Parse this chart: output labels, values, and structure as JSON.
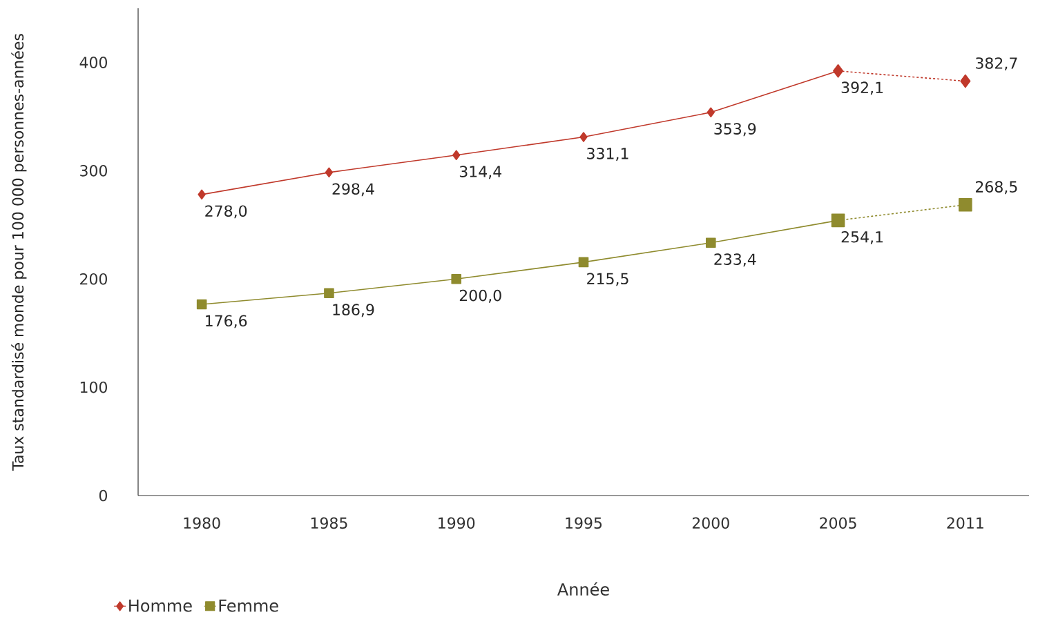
{
  "chart_data": {
    "type": "line",
    "xlabel": "Année",
    "ylabel": "Taux standardisé monde pour 100 000 personnes-années",
    "categories": [
      "1980",
      "1985",
      "1990",
      "1995",
      "2000",
      "2005",
      "2011"
    ],
    "ylim": [
      0,
      450
    ],
    "yticks": [
      0,
      100,
      200,
      300,
      400
    ],
    "legend": "bottom left",
    "grid": false,
    "series": [
      {
        "name": "Homme",
        "color": "#c0392b",
        "marker": "diamond",
        "line_style": "solid",
        "values": [
          278.0,
          298.4,
          314.4,
          331.1,
          353.9,
          392.1,
          null
        ],
        "value_labels": [
          "278,0",
          "298,4",
          "314,4",
          "331,1",
          "353,9",
          "392,1",
          null
        ]
      },
      {
        "name": "Femme",
        "color": "#8f8b2e",
        "marker": "square",
        "line_style": "solid",
        "values": [
          176.6,
          186.9,
          200.0,
          215.5,
          233.4,
          254.1,
          null
        ],
        "value_labels": [
          "176,6",
          "186,9",
          "200,0",
          "215,5",
          "233,4",
          "254,1",
          null
        ]
      },
      {
        "color": "#c0392b",
        "marker": "diamond",
        "line_style": "dashed",
        "values": [
          null,
          null,
          null,
          null,
          null,
          392.1,
          382.7
        ],
        "value_labels": [
          null,
          null,
          null,
          null,
          null,
          null,
          "382,7"
        ]
      },
      {
        "color": "#8f8b2e",
        "marker": "square",
        "line_style": "dashed",
        "values": [
          null,
          null,
          null,
          null,
          null,
          254.1,
          268.5
        ],
        "value_labels": [
          null,
          null,
          null,
          null,
          null,
          null,
          "268,5"
        ]
      }
    ]
  }
}
